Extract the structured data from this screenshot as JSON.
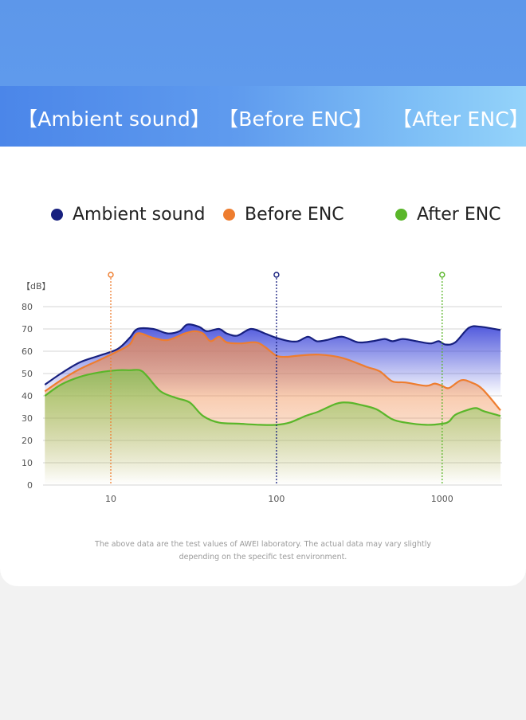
{
  "tabs": [
    {
      "label": "【Ambient sound】"
    },
    {
      "label": "【Before ENC】"
    },
    {
      "label": "【After ENC】"
    }
  ],
  "note": {
    "line1": "The above data are the test values of AWEI laboratory. The actual data may vary slightly",
    "line2": "depending on the specific test environment."
  },
  "colors": {
    "ambient": "#17207f",
    "before": "#ee7d2f",
    "after": "#5ab62a",
    "grid": "#d4d4d4",
    "tab_bar_start": "#4b86e9",
    "tab_bar_end": "#94d3fa"
  },
  "chart_data": {
    "type": "area",
    "ylabel": "【dB】",
    "ylim": [
      0,
      80
    ],
    "yticks": [
      0,
      10,
      20,
      30,
      40,
      50,
      60,
      70,
      80
    ],
    "xscale": "log",
    "xlim": [
      3.9,
      2300
    ],
    "xticks": [
      10,
      100,
      1000
    ],
    "grid": true,
    "legend": "top",
    "markers": [
      {
        "series": "Before ENC",
        "x": 10
      },
      {
        "series": "Ambient sound",
        "x": 100
      },
      {
        "series": "After ENC",
        "x": 1000
      }
    ],
    "series": [
      {
        "name": "Ambient sound",
        "points": [
          [
            4,
            45
          ],
          [
            5,
            50
          ],
          [
            6.5,
            55
          ],
          [
            8.5,
            58
          ],
          [
            11,
            61
          ],
          [
            13,
            66
          ],
          [
            14.5,
            70
          ],
          [
            18,
            70
          ],
          [
            22,
            68
          ],
          [
            26,
            69
          ],
          [
            29,
            72
          ],
          [
            34,
            71
          ],
          [
            38,
            69
          ],
          [
            45,
            70
          ],
          [
            50,
            68
          ],
          [
            58,
            67
          ],
          [
            70,
            70
          ],
          [
            85,
            68
          ],
          [
            100,
            66
          ],
          [
            120,
            64.5
          ],
          [
            135,
            64.5
          ],
          [
            155,
            66.5
          ],
          [
            175,
            64.5
          ],
          [
            200,
            65
          ],
          [
            250,
            66.5
          ],
          [
            310,
            64
          ],
          [
            380,
            64.5
          ],
          [
            450,
            65.5
          ],
          [
            500,
            64.5
          ],
          [
            580,
            65.5
          ],
          [
            700,
            64.5
          ],
          [
            850,
            63.5
          ],
          [
            950,
            64.5
          ],
          [
            1050,
            63
          ],
          [
            1200,
            64
          ],
          [
            1450,
            70.5
          ],
          [
            1700,
            71
          ],
          [
            2250,
            69.5
          ]
        ]
      },
      {
        "name": "Before ENC",
        "points": [
          [
            4,
            42
          ],
          [
            5,
            47
          ],
          [
            6.5,
            52
          ],
          [
            8.5,
            56
          ],
          [
            11,
            60
          ],
          [
            13,
            63
          ],
          [
            14.5,
            68
          ],
          [
            18,
            66
          ],
          [
            22,
            65
          ],
          [
            28,
            68
          ],
          [
            32,
            69
          ],
          [
            36,
            68
          ],
          [
            40,
            64.5
          ],
          [
            45,
            66.5
          ],
          [
            50,
            64
          ],
          [
            60,
            63.5
          ],
          [
            75,
            64
          ],
          [
            85,
            62
          ],
          [
            100,
            58
          ],
          [
            115,
            57.5
          ],
          [
            135,
            58
          ],
          [
            180,
            58.5
          ],
          [
            250,
            57
          ],
          [
            350,
            53
          ],
          [
            420,
            51
          ],
          [
            500,
            46.5
          ],
          [
            600,
            46
          ],
          [
            800,
            44.5
          ],
          [
            900,
            45.5
          ],
          [
            1000,
            44.5
          ],
          [
            1100,
            43.5
          ],
          [
            1300,
            47
          ],
          [
            1500,
            46
          ],
          [
            1750,
            43
          ],
          [
            2250,
            33.5
          ]
        ]
      },
      {
        "name": "After ENC",
        "points": [
          [
            4,
            40
          ],
          [
            5,
            45
          ],
          [
            6.5,
            48.5
          ],
          [
            8.5,
            50.5
          ],
          [
            11,
            51.5
          ],
          [
            13,
            51.5
          ],
          [
            15,
            51.5
          ],
          [
            16.5,
            49
          ],
          [
            20,
            42
          ],
          [
            25,
            39
          ],
          [
            30,
            37
          ],
          [
            36,
            31
          ],
          [
            45,
            28
          ],
          [
            60,
            27.5
          ],
          [
            80,
            27
          ],
          [
            100,
            27
          ],
          [
            120,
            28
          ],
          [
            150,
            31
          ],
          [
            180,
            33
          ],
          [
            230,
            36.5
          ],
          [
            270,
            37
          ],
          [
            320,
            36
          ],
          [
            400,
            34
          ],
          [
            500,
            29.5
          ],
          [
            600,
            28
          ],
          [
            800,
            27
          ],
          [
            1000,
            27.5
          ],
          [
            1100,
            28.5
          ],
          [
            1200,
            31.5
          ],
          [
            1400,
            33.5
          ],
          [
            1600,
            34.5
          ],
          [
            1800,
            33
          ],
          [
            2250,
            31
          ]
        ]
      }
    ]
  }
}
